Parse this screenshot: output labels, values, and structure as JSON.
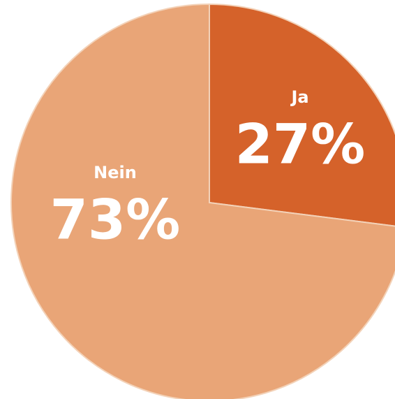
{
  "chart_data": {
    "type": "pie",
    "categories": [
      "Ja",
      "Nein"
    ],
    "values": [
      27,
      73
    ],
    "value_labels": [
      "27%",
      "73%"
    ],
    "colors": [
      "#d5622a",
      "#e9a577"
    ]
  }
}
